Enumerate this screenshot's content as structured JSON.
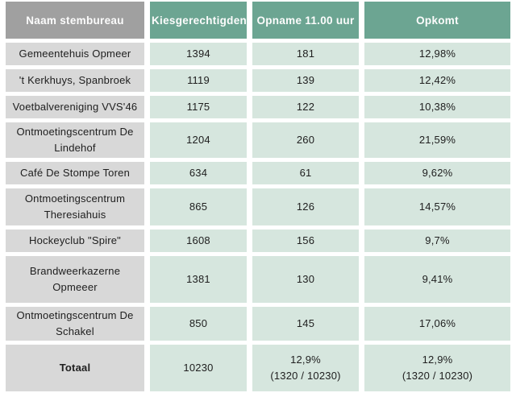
{
  "colors": {
    "header_green": "#6ca592",
    "header_gray": "#a0a0a0",
    "cell_green": "#d6e6de",
    "cell_gray": "#d8d8d8",
    "gutter": "#ffffff",
    "header_text": "#fcfcfc",
    "body_text": "#202020"
  },
  "chart_data": {
    "type": "table",
    "columns": [
      "Naam stembureau",
      "Kiesgerechtigden",
      "Opname 11.00 uur",
      "Opkomt"
    ],
    "rows": [
      {
        "name": "Gemeentehuis Opmeer",
        "values": [
          "1394",
          "181",
          "12,98%"
        ]
      },
      {
        "name": "'t Kerkhuys, Spanbroek",
        "values": [
          "1119",
          "139",
          "12,42%"
        ]
      },
      {
        "name": "Voetbalvereniging VVS'46",
        "values": [
          "1175",
          "122",
          "10,38%"
        ]
      },
      {
        "name": "Ontmoetingscentrum De Lindehof",
        "values": [
          "1204",
          "260",
          "21,59%"
        ]
      },
      {
        "name": "Café De Stompe Toren",
        "values": [
          "634",
          "61",
          "9,62%"
        ]
      },
      {
        "name": "Ontmoetingscentrum Theresiahuis",
        "values": [
          "865",
          "126",
          "14,57%"
        ]
      },
      {
        "name": "Hockeyclub \"Spire\"",
        "values": [
          "1608",
          "156",
          "9,7%"
        ]
      },
      {
        "name": "Brandweerkazerne Opmeeer",
        "values": [
          "1381",
          "130",
          "9,41%"
        ]
      },
      {
        "name": "Ontmoetingscentrum De Schakel",
        "values": [
          "850",
          "145",
          "17,06%"
        ]
      }
    ],
    "total_row": {
      "label": "Totaal",
      "values": [
        "10230",
        "12,9%\n(1320 / 10230)",
        "12,9%\n(1320 / 10230)"
      ]
    }
  }
}
